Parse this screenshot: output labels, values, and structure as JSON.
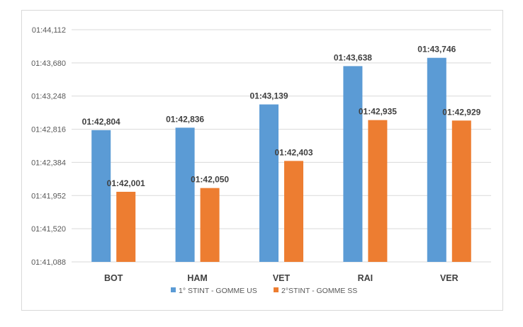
{
  "chart_data": {
    "type": "bar",
    "categories": [
      "BOT",
      "HAM",
      "VET",
      "RAI",
      "VER"
    ],
    "series": [
      {
        "name": "1° STINT - GOMME US",
        "color": "#5B9BD5",
        "values_seconds": [
          102.804,
          102.836,
          103.139,
          103.638,
          103.746
        ],
        "labels": [
          "01:42,804",
          "01:42,836",
          "01:43,139",
          "01:43,638",
          "01:43,746"
        ]
      },
      {
        "name": "2°STINT - GOMME SS",
        "color": "#ED7D31",
        "values_seconds": [
          102.001,
          102.05,
          102.403,
          102.935,
          102.929
        ],
        "labels": [
          "01:42,001",
          "01:42,050",
          "01:42,403",
          "01:42,935",
          "01:42,929"
        ]
      }
    ],
    "y_axis": {
      "min_seconds": 101.088,
      "max_seconds": 104.112,
      "tick_values_seconds": [
        101.088,
        101.52,
        101.952,
        102.384,
        102.816,
        103.248,
        103.68,
        104.112
      ],
      "tick_labels": [
        "01:41,088",
        "01:41,520",
        "01:41,952",
        "01:42,384",
        "01:42,816",
        "01:43,248",
        "01:43,680",
        "01:44,112"
      ]
    },
    "grid": true,
    "legend_position": "bottom"
  }
}
